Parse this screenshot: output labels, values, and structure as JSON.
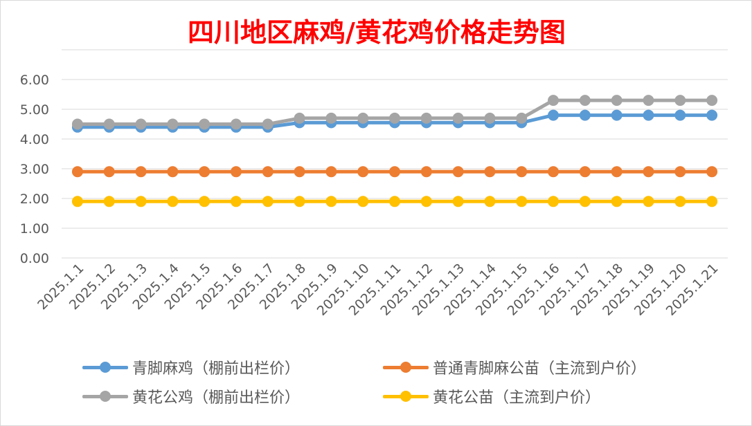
{
  "chart_data": {
    "type": "line",
    "title": "四川地区麻鸡/黄花鸡价格走势图",
    "xlabel": "",
    "ylabel": "",
    "ylim": [
      0,
      7
    ],
    "yticks": [
      "0.00",
      "1.00",
      "2.00",
      "3.00",
      "4.00",
      "5.00",
      "6.00"
    ],
    "grid": true,
    "legend_position": "bottom",
    "categories": [
      "2025.1.1",
      "2025.1.2",
      "2025.1.3",
      "2025.1.4",
      "2025.1.5",
      "2025.1.6",
      "2025.1.7",
      "2025.1.8",
      "2025.1.9",
      "2025.1.10",
      "2025.1.11",
      "2025.1.12",
      "2025.1.13",
      "2025.1.14",
      "2025.1.15",
      "2025.1.16",
      "2025.1.17",
      "2025.1.18",
      "2025.1.19",
      "2025.1.20",
      "2025.1.21"
    ],
    "series": [
      {
        "name": "青脚麻鸡（棚前出栏价）",
        "color": "#5b9bd5",
        "values": [
          4.4,
          4.4,
          4.4,
          4.4,
          4.4,
          4.4,
          4.4,
          4.55,
          4.55,
          4.55,
          4.55,
          4.55,
          4.55,
          4.55,
          4.55,
          4.8,
          4.8,
          4.8,
          4.8,
          4.8,
          4.8
        ]
      },
      {
        "name": "普通青脚麻公苗（主流到户价）",
        "color": "#ed7d31",
        "values": [
          2.9,
          2.9,
          2.9,
          2.9,
          2.9,
          2.9,
          2.9,
          2.9,
          2.9,
          2.9,
          2.9,
          2.9,
          2.9,
          2.9,
          2.9,
          2.9,
          2.9,
          2.9,
          2.9,
          2.9,
          2.9
        ]
      },
      {
        "name": "黄花公鸡（棚前出栏价）",
        "color": "#a5a5a5",
        "values": [
          4.5,
          4.5,
          4.5,
          4.5,
          4.5,
          4.5,
          4.5,
          4.7,
          4.7,
          4.7,
          4.7,
          4.7,
          4.7,
          4.7,
          4.7,
          5.3,
          5.3,
          5.3,
          5.3,
          5.3,
          5.3
        ]
      },
      {
        "name": "黄花公苗（主流到户价）",
        "color": "#ffc000",
        "values": [
          1.9,
          1.9,
          1.9,
          1.9,
          1.9,
          1.9,
          1.9,
          1.9,
          1.9,
          1.9,
          1.9,
          1.9,
          1.9,
          1.9,
          1.9,
          1.9,
          1.9,
          1.9,
          1.9,
          1.9,
          1.9
        ]
      }
    ]
  },
  "colors": {
    "title": "#ff0000",
    "grid": "#d9d9d9",
    "tick_text": "#595959"
  }
}
